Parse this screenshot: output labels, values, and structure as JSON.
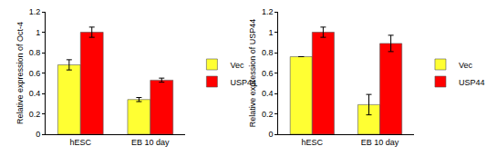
{
  "chart_data": [
    {
      "type": "bar",
      "y_label": "Relative expression of Oct-4",
      "categories": [
        "hESC",
        "EB 10 day"
      ],
      "series": [
        {
          "name": "Vec",
          "color": "#ffff33",
          "values": [
            0.68,
            0.34
          ],
          "errors": [
            0.05,
            0.02
          ]
        },
        {
          "name": "USP44",
          "color": "#ff0000",
          "values": [
            1.0,
            0.53
          ],
          "errors": [
            0.05,
            0.02
          ]
        }
      ],
      "ylim": [
        0,
        1.2
      ],
      "yticks": [
        0,
        0.2,
        0.4,
        0.6,
        0.8,
        1,
        1.2
      ],
      "grid": false,
      "legend": "right"
    },
    {
      "type": "bar",
      "y_label": "Relative expression of USP44",
      "categories": [
        "hESC",
        "EB 10 day"
      ],
      "series": [
        {
          "name": "Vec",
          "color": "#ffff33",
          "values": [
            0.76,
            0.29
          ],
          "errors": [
            0,
            0.1
          ]
        },
        {
          "name": "USP44",
          "color": "#ff0000",
          "values": [
            1.0,
            0.89
          ],
          "errors": [
            0.05,
            0.08
          ]
        }
      ],
      "ylim": [
        0,
        1.2
      ],
      "yticks": [
        0,
        0.2,
        0.4,
        0.6,
        0.8,
        1,
        1.2
      ],
      "grid": false,
      "legend": "right"
    }
  ]
}
